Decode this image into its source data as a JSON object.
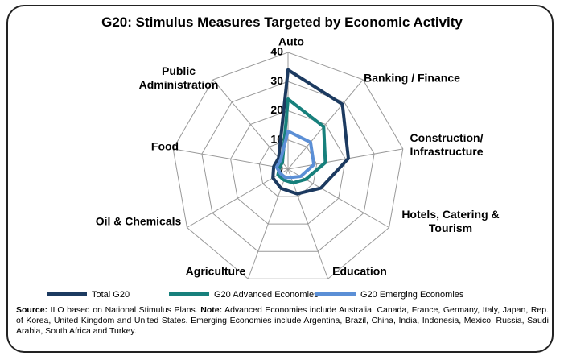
{
  "chart_data": {
    "type": "radar",
    "title": "G20: Stimulus Measures Targeted by Economic Activity",
    "categories": [
      "Auto",
      "Banking / Finance",
      "Construction/ Infrastructure",
      "Hotels, Catering & Tourism",
      "Education",
      "Agriculture",
      "Oil & Chemicals",
      "Food",
      "Public Administration"
    ],
    "series": [
      {
        "name": "Total G20",
        "color": "#1c3a60",
        "values": [
          34,
          29,
          21,
          13,
          9,
          7,
          6,
          5,
          5
        ]
      },
      {
        "name": "G20 Advanced Economies",
        "color": "#17807c",
        "values": [
          24,
          19,
          13,
          7,
          5,
          4,
          4,
          3,
          3
        ]
      },
      {
        "name": "G20 Emerging Economies",
        "color": "#5b8fd6",
        "values": [
          13,
          12,
          9,
          5,
          3,
          3,
          3,
          4,
          4
        ]
      }
    ],
    "ylim": [
      0,
      40
    ],
    "yticks": [
      0,
      10,
      20,
      30,
      40
    ],
    "grid": true,
    "legend": "bottom",
    "source_label": "Source:",
    "source_text": " ILO based on National Stimulus Plans. ",
    "note_label": "Note:",
    "note_text": " Advanced Economies include Australia, Canada, France, Germany, Italy, Japan, Rep. of Korea, United Kingdom and United States. Emerging Economies include Argentina, Brazil, China, India, Indonesia, Mexico, Russia, Saudi Arabia, South Africa and Turkey."
  }
}
